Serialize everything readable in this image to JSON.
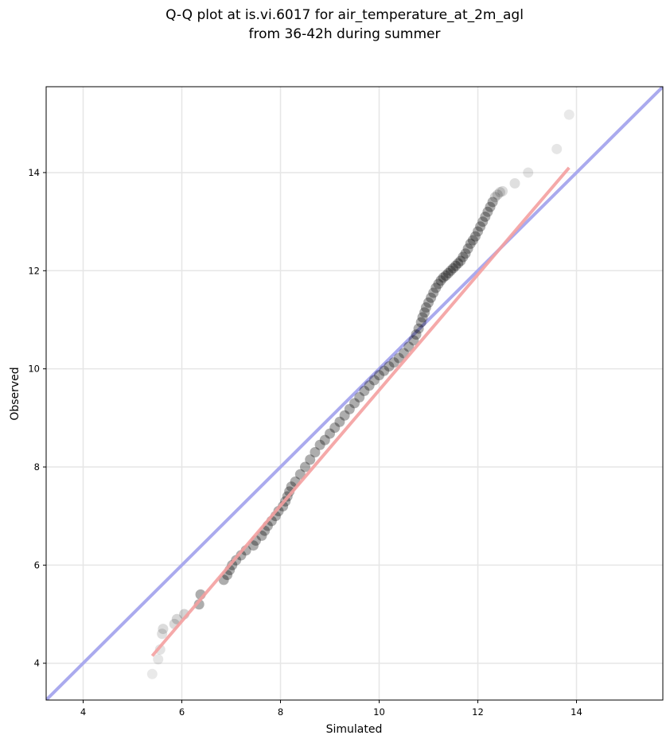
{
  "chart_data": {
    "type": "scatter",
    "title_lines": [
      "Q-Q plot at is.vi.6017 for air_temperature_at_2m_agl",
      "from 36-42h during summer"
    ],
    "xlabel": "Simulated",
    "ylabel": "Observed",
    "xlim": [
      3.25,
      15.75
    ],
    "ylim": [
      3.25,
      15.75
    ],
    "xticks": [
      4,
      6,
      8,
      10,
      12,
      14
    ],
    "yticks": [
      4,
      6,
      8,
      10,
      12,
      14
    ],
    "tick_labels_x": [
      "4",
      "6",
      "8",
      "10",
      "12",
      "14"
    ],
    "tick_labels_y": [
      "4",
      "6",
      "8",
      "10",
      "12",
      "14"
    ],
    "grid": true,
    "reference_line": {
      "from": [
        3.25,
        3.25
      ],
      "to": [
        15.75,
        15.75
      ],
      "color": "#aaaaee"
    },
    "fit_line": {
      "from": [
        5.4,
        4.15
      ],
      "to": [
        13.85,
        14.1
      ],
      "color": "#f4a0a0"
    },
    "point_color": "#000000",
    "series": [
      {
        "x": [
          5.4,
          5.52,
          5.56,
          5.6,
          5.62,
          5.85,
          5.9,
          6.05,
          6.35,
          6.38,
          6.85,
          6.92,
          6.97,
          7.02,
          7.1,
          7.2,
          7.3,
          7.45,
          7.5,
          7.62,
          7.68,
          7.74,
          7.82,
          7.9,
          7.96,
          8.05,
          8.1,
          8.14,
          8.18,
          8.22,
          8.3,
          8.4,
          8.5,
          8.6,
          8.7,
          8.8,
          8.9,
          9.0,
          9.1,
          9.2,
          9.3,
          9.4,
          9.5,
          9.6,
          9.7,
          9.8,
          9.9,
          10.0,
          10.1,
          10.2,
          10.3,
          10.4,
          10.5,
          10.6,
          10.7,
          10.75,
          10.8,
          10.85,
          10.88,
          10.92,
          10.95,
          11.0,
          11.05,
          11.1,
          11.15,
          11.2,
          11.25,
          11.3,
          11.35,
          11.4,
          11.45,
          11.5,
          11.55,
          11.6,
          11.65,
          11.7,
          11.75,
          11.8,
          11.85,
          11.9,
          11.95,
          12.0,
          12.05,
          12.1,
          12.15,
          12.2,
          12.25,
          12.3,
          12.35,
          12.4,
          12.45,
          12.5,
          12.75,
          13.02,
          13.6,
          13.85
        ],
        "y": [
          3.78,
          4.08,
          4.28,
          4.6,
          4.7,
          4.8,
          4.9,
          5.0,
          5.2,
          5.4,
          5.7,
          5.8,
          5.9,
          6.0,
          6.1,
          6.2,
          6.3,
          6.4,
          6.5,
          6.6,
          6.7,
          6.8,
          6.9,
          7.0,
          7.1,
          7.2,
          7.3,
          7.4,
          7.5,
          7.6,
          7.7,
          7.85,
          8.0,
          8.15,
          8.3,
          8.45,
          8.55,
          8.68,
          8.8,
          8.92,
          9.05,
          9.18,
          9.3,
          9.42,
          9.55,
          9.66,
          9.77,
          9.87,
          9.96,
          10.05,
          10.13,
          10.22,
          10.32,
          10.45,
          10.58,
          10.7,
          10.82,
          10.95,
          11.05,
          11.15,
          11.25,
          11.35,
          11.45,
          11.55,
          11.65,
          11.73,
          11.8,
          11.86,
          11.9,
          11.95,
          12.0,
          12.05,
          12.1,
          12.15,
          12.2,
          12.28,
          12.35,
          12.45,
          12.55,
          12.62,
          12.7,
          12.8,
          12.9,
          13.0,
          13.1,
          13.2,
          13.3,
          13.4,
          13.5,
          13.55,
          13.6,
          13.62,
          13.78,
          14.0,
          14.48,
          15.18
        ]
      }
    ]
  }
}
